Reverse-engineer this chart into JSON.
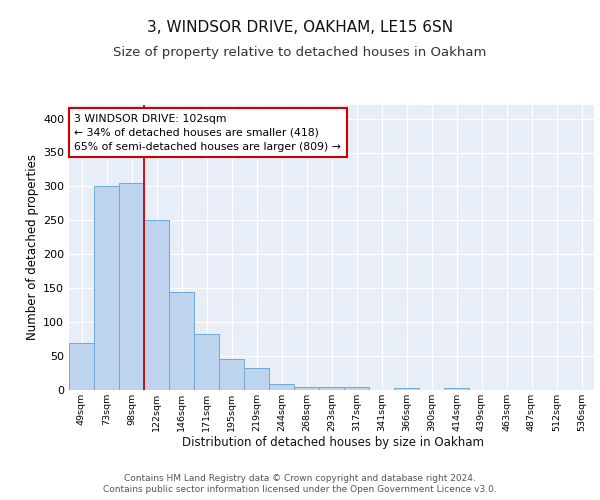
{
  "title1": "3, WINDSOR DRIVE, OAKHAM, LE15 6SN",
  "title2": "Size of property relative to detached houses in Oakham",
  "xlabel": "Distribution of detached houses by size in Oakham",
  "ylabel": "Number of detached properties",
  "bar_labels": [
    "49sqm",
    "73sqm",
    "98sqm",
    "122sqm",
    "146sqm",
    "171sqm",
    "195sqm",
    "219sqm",
    "244sqm",
    "268sqm",
    "293sqm",
    "317sqm",
    "341sqm",
    "366sqm",
    "390sqm",
    "414sqm",
    "439sqm",
    "463sqm",
    "487sqm",
    "512sqm",
    "536sqm"
  ],
  "bar_values": [
    70,
    300,
    305,
    250,
    145,
    83,
    45,
    33,
    9,
    5,
    5,
    5,
    0,
    3,
    0,
    3,
    0,
    0,
    0,
    0,
    0
  ],
  "bar_color": "#bed3ed",
  "bar_edge_color": "#6fa8d6",
  "vline_color": "#cc0000",
  "vline_pos": 2.5,
  "annotation_text": "3 WINDSOR DRIVE: 102sqm\n← 34% of detached houses are smaller (418)\n65% of semi-detached houses are larger (809) →",
  "annotation_box_color": "#ffffff",
  "annotation_box_edge": "#cc0000",
  "ylim": [
    0,
    420
  ],
  "yticks": [
    0,
    50,
    100,
    150,
    200,
    250,
    300,
    350,
    400
  ],
  "background_color": "#e8eef8",
  "grid_color": "#ffffff",
  "footer_text": "Contains HM Land Registry data © Crown copyright and database right 2024.\nContains public sector information licensed under the Open Government Licence v3.0.",
  "title1_fontsize": 11,
  "title2_fontsize": 9.5,
  "xlabel_fontsize": 8.5,
  "ylabel_fontsize": 8.5,
  "footer_fontsize": 6.5
}
